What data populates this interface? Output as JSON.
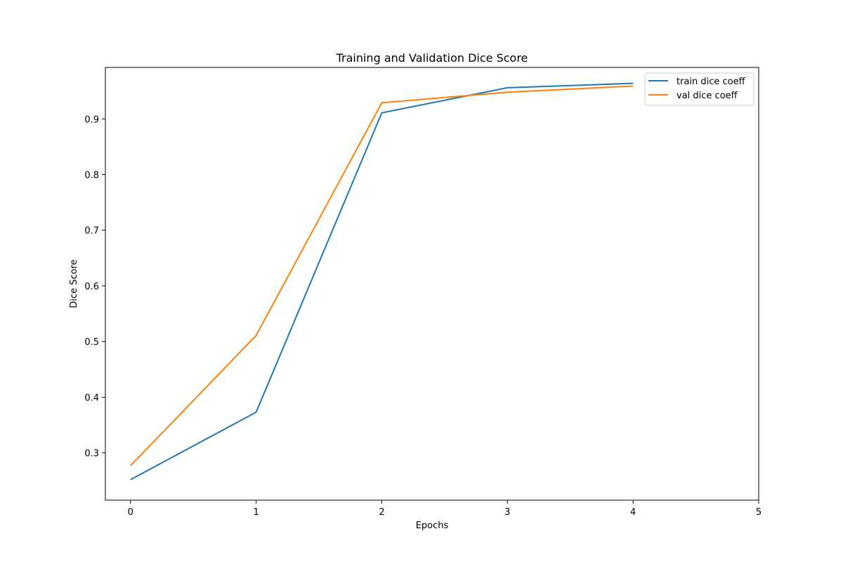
{
  "chart_data": {
    "type": "line",
    "title": "Training and Validation Dice Score",
    "xlabel": "Epochs",
    "ylabel": "Dice Score",
    "x": [
      0,
      1,
      2,
      3,
      4
    ],
    "xlim": [
      -0.2,
      5
    ],
    "ylim": [
      0.215,
      0.9925
    ],
    "xticks": [
      0,
      1,
      2,
      3,
      4,
      5
    ],
    "yticks": [
      0.3,
      0.4,
      0.5,
      0.6,
      0.7,
      0.8,
      0.9
    ],
    "grid": false,
    "legend_position": "top-right",
    "series": [
      {
        "name": "train dice coeff",
        "color": "#1f77b4",
        "values": [
          0.252,
          0.373,
          0.911,
          0.956,
          0.964
        ]
      },
      {
        "name": "val dice coeff",
        "color": "#ff7f0e",
        "values": [
          0.277,
          0.511,
          0.929,
          0.948,
          0.959
        ]
      }
    ]
  }
}
